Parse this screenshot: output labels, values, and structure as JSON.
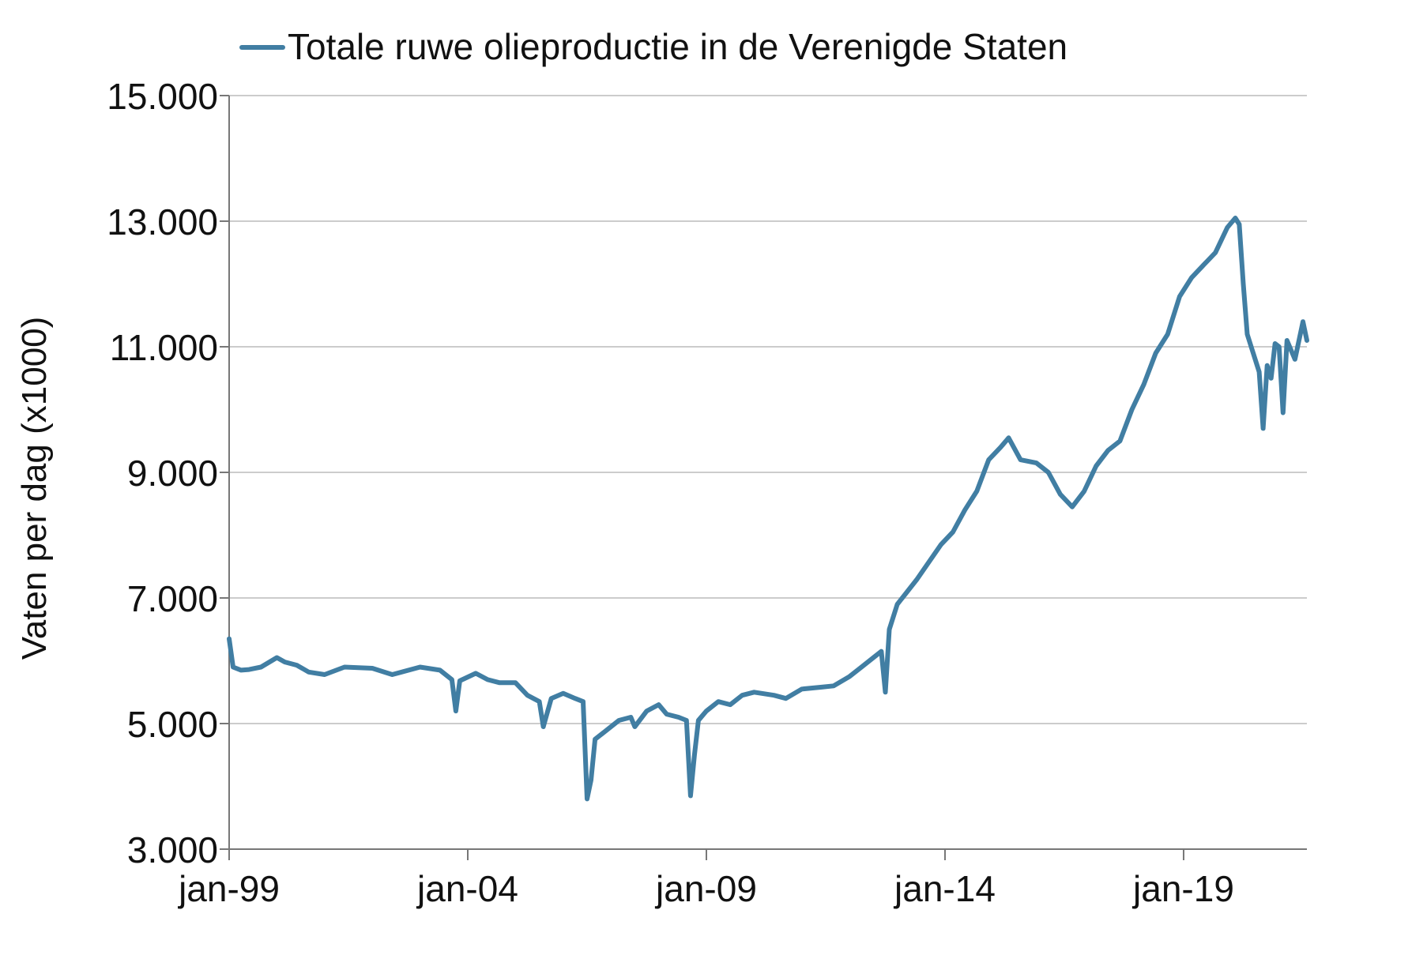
{
  "chart_data": {
    "type": "line",
    "title": "",
    "ylabel": "Vaten per dag (x1000)",
    "xlabel": "",
    "ylim": [
      3000,
      15000
    ],
    "yticks": [
      3000,
      5000,
      7000,
      9000,
      11000,
      13000,
      15000
    ],
    "ytick_labels": [
      "3.000",
      "5.000",
      "7.000",
      "9.000",
      "11.000",
      "13.000",
      "15.000"
    ],
    "xticks": [
      {
        "date": "1999-01",
        "label": "jan-99"
      },
      {
        "date": "2004-01",
        "label": "jan-04"
      },
      {
        "date": "2009-01",
        "label": "jan-09"
      },
      {
        "date": "2014-01",
        "label": "jan-14"
      },
      {
        "date": "2019-01",
        "label": "jan-19"
      }
    ],
    "xlim": [
      "1999-01",
      "2021-08"
    ],
    "grid": "horizontal",
    "legend_position": "top",
    "series": [
      {
        "name": "Totale ruwe olieproductie in de Verenigde Staten",
        "color": "#417ea3",
        "points": [
          [
            "1999-01",
            6350
          ],
          [
            "1999-02",
            5900
          ],
          [
            "1999-04",
            5850
          ],
          [
            "1999-06",
            5860
          ],
          [
            "1999-09",
            5900
          ],
          [
            "2000-01",
            6050
          ],
          [
            "2000-03",
            5980
          ],
          [
            "2000-06",
            5930
          ],
          [
            "2000-09",
            5820
          ],
          [
            "2001-01",
            5780
          ],
          [
            "2001-06",
            5900
          ],
          [
            "2002-01",
            5880
          ],
          [
            "2002-06",
            5780
          ],
          [
            "2003-01",
            5900
          ],
          [
            "2003-06",
            5850
          ],
          [
            "2003-09",
            5700
          ],
          [
            "2003-10",
            5200
          ],
          [
            "2003-11",
            5680
          ],
          [
            "2004-03",
            5800
          ],
          [
            "2004-06",
            5700
          ],
          [
            "2004-09",
            5650
          ],
          [
            "2005-01",
            5650
          ],
          [
            "2005-04",
            5450
          ],
          [
            "2005-07",
            5350
          ],
          [
            "2005-08",
            4950
          ],
          [
            "2005-10",
            5400
          ],
          [
            "2006-01",
            5480
          ],
          [
            "2006-04",
            5400
          ],
          [
            "2006-06",
            5350
          ],
          [
            "2006-07",
            3800
          ],
          [
            "2006-08",
            4100
          ],
          [
            "2006-09",
            4750
          ],
          [
            "2006-12",
            4900
          ],
          [
            "2007-03",
            5050
          ],
          [
            "2007-06",
            5100
          ],
          [
            "2007-07",
            4950
          ],
          [
            "2007-10",
            5200
          ],
          [
            "2008-01",
            5300
          ],
          [
            "2008-03",
            5150
          ],
          [
            "2008-06",
            5100
          ],
          [
            "2008-08",
            5050
          ],
          [
            "2008-09",
            3850
          ],
          [
            "2008-10",
            4500
          ],
          [
            "2008-11",
            5050
          ],
          [
            "2009-01",
            5200
          ],
          [
            "2009-04",
            5350
          ],
          [
            "2009-07",
            5300
          ],
          [
            "2009-10",
            5450
          ],
          [
            "2010-01",
            5500
          ],
          [
            "2010-06",
            5450
          ],
          [
            "2010-09",
            5400
          ],
          [
            "2011-01",
            5550
          ],
          [
            "2011-06",
            5580
          ],
          [
            "2011-09",
            5600
          ],
          [
            "2012-01",
            5750
          ],
          [
            "2012-04",
            5900
          ],
          [
            "2012-07",
            6050
          ],
          [
            "2012-09",
            6150
          ],
          [
            "2012-10",
            5500
          ],
          [
            "2012-11",
            6500
          ],
          [
            "2013-01",
            6900
          ],
          [
            "2013-06",
            7300
          ],
          [
            "2013-12",
            7850
          ],
          [
            "2014-03",
            8050
          ],
          [
            "2014-06",
            8400
          ],
          [
            "2014-09",
            8700
          ],
          [
            "2014-12",
            9200
          ],
          [
            "2015-03",
            9400
          ],
          [
            "2015-05",
            9550
          ],
          [
            "2015-08",
            9200
          ],
          [
            "2015-12",
            9150
          ],
          [
            "2016-03",
            9000
          ],
          [
            "2016-06",
            8650
          ],
          [
            "2016-09",
            8450
          ],
          [
            "2016-12",
            8700
          ],
          [
            "2017-03",
            9100
          ],
          [
            "2017-06",
            9350
          ],
          [
            "2017-09",
            9500
          ],
          [
            "2017-12",
            10000
          ],
          [
            "2018-03",
            10400
          ],
          [
            "2018-06",
            10900
          ],
          [
            "2018-09",
            11200
          ],
          [
            "2018-12",
            11800
          ],
          [
            "2019-03",
            12100
          ],
          [
            "2019-06",
            12300
          ],
          [
            "2019-09",
            12500
          ],
          [
            "2019-12",
            12900
          ],
          [
            "2020-02",
            13050
          ],
          [
            "2020-03",
            12950
          ],
          [
            "2020-04",
            12000
          ],
          [
            "2020-05",
            11200
          ],
          [
            "2020-06",
            11000
          ],
          [
            "2020-08",
            10600
          ],
          [
            "2020-09",
            9700
          ],
          [
            "2020-10",
            10700
          ],
          [
            "2020-11",
            10500
          ],
          [
            "2020-12",
            11050
          ],
          [
            "2021-01",
            11000
          ],
          [
            "2021-02",
            9950
          ],
          [
            "2021-03",
            11100
          ],
          [
            "2021-05",
            10800
          ],
          [
            "2021-07",
            11400
          ],
          [
            "2021-08",
            11100
          ]
        ]
      }
    ]
  }
}
